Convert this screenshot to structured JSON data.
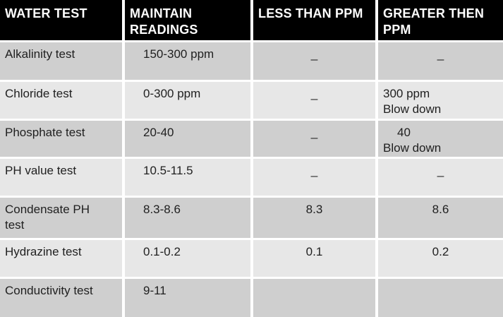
{
  "title": "Water test readings table",
  "colors": {
    "header_bg": "#000000",
    "header_text": "#ffffff",
    "row_dark": "#cfcfcf",
    "row_light": "#e7e7e7",
    "body_text": "#1f1f1f",
    "grid_line": "#ffffff"
  },
  "table": {
    "columns": [
      {
        "label": "WATER TEST"
      },
      {
        "label": "MAINTAIN\nREADINGS"
      },
      {
        "label": "LESS THAN PPM"
      },
      {
        "label": "GREATER THEN\nPPM"
      }
    ],
    "rows": [
      {
        "test": "Alkalinity test",
        "maintain": "150-300 ppm",
        "less": "_",
        "greater": "_"
      },
      {
        "test": "Chloride test",
        "maintain": "0-300 ppm",
        "less": "_",
        "greater": "300 ppm\nBlow down"
      },
      {
        "test": "Phosphate test",
        "maintain": "20-40",
        "less": "_",
        "greater": "40\nBlow down"
      },
      {
        "test": "PH value test",
        "maintain": "10.5-11.5",
        "less": "_",
        "greater": "_"
      },
      {
        "test": "Condensate PH\ntest",
        "maintain": "8.3-8.6",
        "less": "8.3",
        "greater": "8.6"
      },
      {
        "test": "Hydrazine test",
        "maintain": "0.1-0.2",
        "less": "0.1",
        "greater": "0.2"
      },
      {
        "test": "Conductivity test",
        "maintain": "9-11",
        "less": "",
        "greater": ""
      }
    ]
  }
}
